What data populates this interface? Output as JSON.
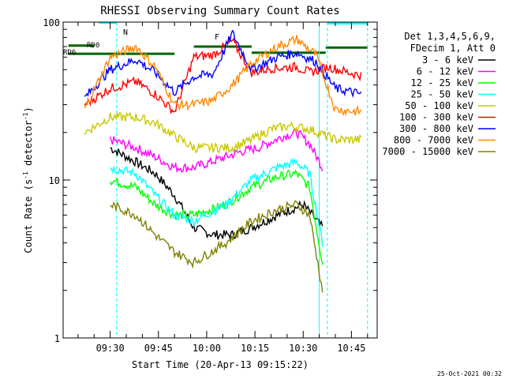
{
  "chart_data": {
    "type": "line",
    "title": "RHESSI Observing Summary Count Rates",
    "xlabel": "Start Time (20-Apr-13 09:15:22)",
    "ylabel_main": "Count Rate (s",
    "ylabel_sup": "-1",
    "ylabel_tail": " detector",
    "ylabel_end": ")",
    "yscale": "log",
    "ylim": [
      1,
      100
    ],
    "y_ticks": [
      {
        "value": 1,
        "label": "1"
      },
      {
        "value": 10,
        "label": "10"
      },
      {
        "value": 100,
        "label": "100"
      }
    ],
    "xlim": [
      "09:15:22",
      "10:53:00"
    ],
    "x_ticks": [
      {
        "label": "09:30",
        "minute": 570
      },
      {
        "label": "09:45",
        "minute": 585
      },
      {
        "label": "10:00",
        "minute": 600
      },
      {
        "label": "10:15",
        "minute": 615
      },
      {
        "label": "10:30",
        "minute": 630
      },
      {
        "label": "10:45",
        "minute": 645
      }
    ],
    "legend_header": [
      "Det 1,3,4,5,6,9,",
      "FDecim 1, Att 0"
    ],
    "legend_position": "right",
    "series": [
      {
        "name": "3 - 6 keV",
        "color": "#000000",
        "points": [
          [
            570,
            16
          ],
          [
            578,
            13
          ],
          [
            584,
            11
          ],
          [
            590,
            8
          ],
          [
            596,
            5
          ],
          [
            602,
            4.5
          ],
          [
            608,
            4.5
          ],
          [
            614,
            5
          ],
          [
            622,
            6
          ],
          [
            630,
            7
          ],
          [
            636,
            5
          ]
        ]
      },
      {
        "name": "6 - 12 keV",
        "color": "#ff00ff",
        "points": [
          [
            570,
            18
          ],
          [
            578,
            16
          ],
          [
            584,
            14
          ],
          [
            590,
            12
          ],
          [
            596,
            12
          ],
          [
            606,
            14
          ],
          [
            610,
            15
          ],
          [
            616,
            16
          ],
          [
            624,
            19
          ],
          [
            628,
            20
          ],
          [
            632,
            17
          ],
          [
            636,
            12
          ]
        ]
      },
      {
        "name": "12 - 25 keV",
        "color": "#00ff00",
        "points": [
          [
            570,
            10
          ],
          [
            578,
            9
          ],
          [
            584,
            7
          ],
          [
            590,
            6
          ],
          [
            596,
            6
          ],
          [
            606,
            7
          ],
          [
            614,
            9
          ],
          [
            622,
            10.5
          ],
          [
            628,
            11
          ],
          [
            632,
            9
          ],
          [
            636,
            3
          ]
        ]
      },
      {
        "name": "25 - 50 keV",
        "color": "#00ffff",
        "points": [
          [
            570,
            12
          ],
          [
            578,
            11
          ],
          [
            584,
            8
          ],
          [
            590,
            6
          ],
          [
            596,
            5.5
          ],
          [
            606,
            7
          ],
          [
            614,
            10
          ],
          [
            622,
            12
          ],
          [
            628,
            13
          ],
          [
            632,
            11
          ],
          [
            636,
            4
          ]
        ]
      },
      {
        "name": "50 - 100 keV",
        "color": "#c8c800",
        "points": [
          [
            562,
            20
          ],
          [
            570,
            25
          ],
          [
            578,
            25
          ],
          [
            584,
            23
          ],
          [
            590,
            19
          ],
          [
            596,
            16
          ],
          [
            602,
            16
          ],
          [
            608,
            16
          ],
          [
            614,
            18
          ],
          [
            620,
            21
          ],
          [
            626,
            22
          ],
          [
            632,
            21
          ],
          [
            640,
            18
          ],
          [
            648,
            18
          ]
        ]
      },
      {
        "name": "100 - 300 keV",
        "color": "#ff0000",
        "points": [
          [
            562,
            30
          ],
          [
            570,
            38
          ],
          [
            578,
            42
          ],
          [
            584,
            35
          ],
          [
            590,
            27
          ],
          [
            596,
            60
          ],
          [
            602,
            62
          ],
          [
            608,
            76
          ],
          [
            614,
            48
          ],
          [
            620,
            51
          ],
          [
            628,
            52
          ],
          [
            632,
            48
          ],
          [
            638,
            52
          ],
          [
            644,
            48
          ],
          [
            648,
            46
          ]
        ]
      },
      {
        "name": "300 - 800 keV",
        "color": "#0000ff",
        "points": [
          [
            562,
            33
          ],
          [
            570,
            50
          ],
          [
            578,
            58
          ],
          [
            584,
            48
          ],
          [
            590,
            36
          ],
          [
            596,
            45
          ],
          [
            602,
            47
          ],
          [
            608,
            85
          ],
          [
            614,
            50
          ],
          [
            622,
            60
          ],
          [
            628,
            64
          ],
          [
            634,
            56
          ],
          [
            640,
            38
          ],
          [
            648,
            35
          ]
        ]
      },
      {
        "name": "800 - 7000 keV",
        "color": "#ff8800",
        "points": [
          [
            562,
            28
          ],
          [
            570,
            60
          ],
          [
            578,
            70
          ],
          [
            584,
            52
          ],
          [
            590,
            30
          ],
          [
            596,
            30
          ],
          [
            602,
            32
          ],
          [
            608,
            40
          ],
          [
            614,
            55
          ],
          [
            622,
            70
          ],
          [
            628,
            78
          ],
          [
            634,
            62
          ],
          [
            640,
            28
          ],
          [
            648,
            27
          ]
        ]
      },
      {
        "name": "7000 - 15000 keV",
        "color": "#808000",
        "points": [
          [
            570,
            7
          ],
          [
            578,
            6
          ],
          [
            584,
            4.5
          ],
          [
            590,
            3.5
          ],
          [
            596,
            3
          ],
          [
            606,
            4
          ],
          [
            614,
            5.5
          ],
          [
            622,
            6.5
          ],
          [
            628,
            7
          ],
          [
            632,
            6
          ],
          [
            636,
            2
          ]
        ]
      }
    ],
    "annotations": [
      {
        "text": "RD0",
        "color": "#006400"
      },
      {
        "text": "RD6",
        "color": "#006400"
      },
      {
        "text": "N",
        "color": "#00ffff"
      },
      {
        "text": "F",
        "color": "#ff0000"
      }
    ],
    "timestamp": "25-Oct-2021 00:32"
  }
}
